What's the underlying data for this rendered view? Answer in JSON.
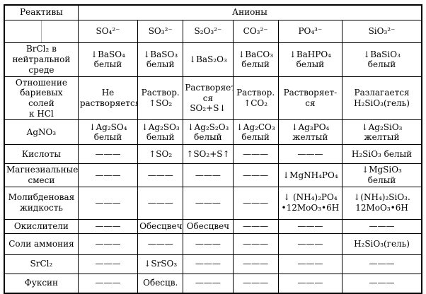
{
  "header": {
    "reagents_label": "Реактивы",
    "anions_label": "Анионы",
    "anion_columns": [
      "SO₄²⁻",
      "SO₃²⁻",
      "S₂O₃²⁻",
      "CO₃²⁻",
      "PO₄³⁻",
      "SiO₃²⁻"
    ]
  },
  "rows": [
    {
      "reagent": "BrCl₂ в\nнейтральной среде",
      "cells": [
        "↓BaSO₄\nбелый",
        "↓BaSO₃\nбелый",
        "↓BaS₂O₃",
        "↓BaCO₃\nбелый",
        "↓BaHPO₄\nбелый",
        "↓BaSiO₃\nбелый"
      ]
    },
    {
      "reagent": "Отношение\nбариевых солей\nк HCl",
      "cells": [
        "Не\nрастворяется",
        "Раствор.\n↑SO₂",
        "Растворяет-\nся SO₂+S↓",
        "Раствор.\n↑CO₂",
        "Растворяет-\nся",
        "Разлагается\nH₂SiO₃(гель)"
      ]
    },
    {
      "reagent": "AgNO₃",
      "cells": [
        "↓Ag₂SO₄\nбелый",
        "↓Ag₂SO₃\nбелый",
        "↓Ag₂S₂O₃\nбелый",
        "↓Ag₂CO₃\nбелый",
        "↓Ag₃PO₄\nжелтый",
        "↓Ag₂SiO₃\nжелтый"
      ]
    },
    {
      "reagent": "Кислоты",
      "cells": [
        "———",
        "↑SO₂",
        "↑SO₂+S↑",
        "———",
        "———",
        "H₂SiO₃ белый"
      ]
    },
    {
      "reagent": "Магнезиальные\nсмеси",
      "cells": [
        "———",
        "———",
        "———",
        "———",
        "↓MgNH₄PO₄",
        "↓MgSiO₃\nбелый"
      ]
    },
    {
      "reagent": "Молибденовая\nжидкость",
      "cells": [
        "———",
        "———",
        "———",
        "———",
        "↓ (NH₄)₂PO₄\n•12MoO₃•6H",
        "↓(NH₄)₂SiO₃.\n12MoO₃•6H"
      ]
    },
    {
      "reagent": "Окислители",
      "cells": [
        "———",
        "Обесцвеч",
        "Обесцвеч",
        "———",
        "———",
        "———"
      ]
    },
    {
      "reagent": "Соли аммония",
      "cells": [
        "———",
        "———",
        "———",
        "———",
        "———",
        "H₂SiO₃(гель)"
      ]
    },
    {
      "reagent": "SrCl₂",
      "cells": [
        "———",
        "↓SrSO₃",
        "———",
        "———",
        "———",
        "———"
      ]
    },
    {
      "reagent": "Фуксин",
      "cells": [
        "———",
        "Обесцв.",
        "———",
        "———",
        "———",
        "———"
      ]
    }
  ],
  "colors": {
    "border": "#000000",
    "sub_divider": "#b3b3b3",
    "text": "#000000",
    "background": "#ffffff"
  }
}
